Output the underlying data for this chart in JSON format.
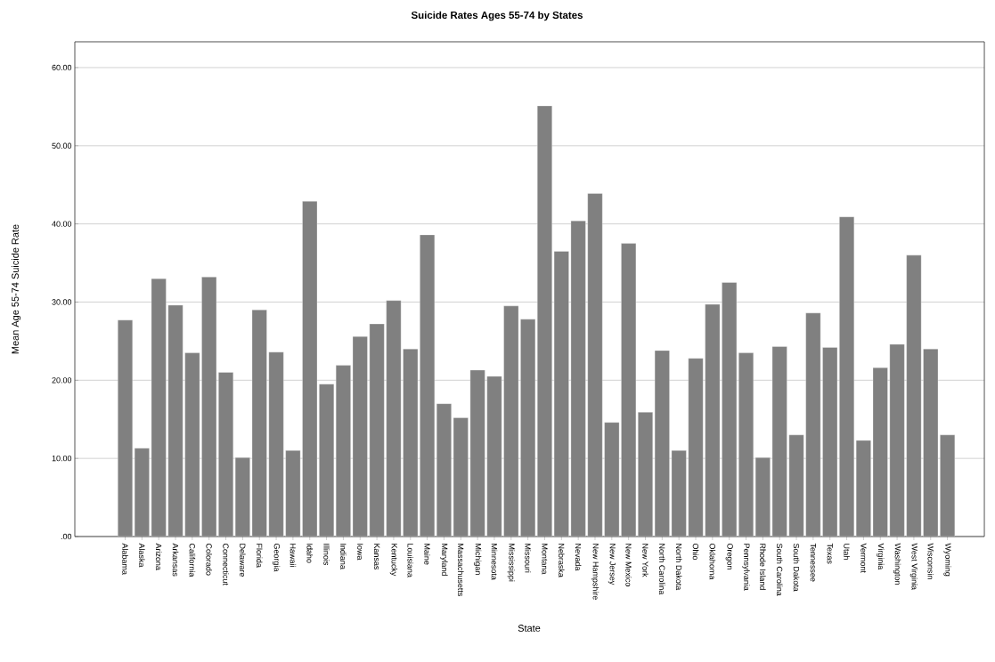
{
  "chart_data": {
    "type": "bar",
    "title": "Suicide Rates Ages 55-74 by States",
    "xlabel": "State",
    "ylabel": "Mean Age 55-74 Suicide Rate",
    "categories": [
      "Alabama",
      "Alaska",
      "Arizona",
      "Arkansas",
      "California",
      "Colorado",
      "Connecticut",
      "Delaware",
      "Florida",
      "Georgia",
      "Hawaii",
      "Idaho",
      "Illinois",
      "Indiana",
      "Iowa",
      "Kansas",
      "Kentucky",
      "Louisiana",
      "Maine",
      "Maryland",
      "Massachusetts",
      "Michigan",
      "Minnesota",
      "Mississippi",
      "Missouri",
      "Montana",
      "Nebraska",
      "Nevada",
      "New Hampshire",
      "New Jersey",
      "New Mexico",
      "New York",
      "North Carolina",
      "North Dakota",
      "Ohio",
      "Oklahoma",
      "Oregon",
      "Pennsylvania",
      "Rhode Island",
      "South Carolina",
      "South Dakota",
      "Tennessee",
      "Texas",
      "Utah",
      "Vermont",
      "Virginia",
      "Washington",
      "West Virginia",
      "Wisconsin",
      "Wyoming"
    ],
    "values": [
      27.7,
      11.3,
      33.0,
      29.6,
      23.5,
      33.2,
      21.0,
      10.1,
      29.0,
      23.6,
      11.0,
      42.9,
      19.5,
      21.9,
      25.6,
      27.2,
      30.2,
      24.0,
      38.6,
      17.0,
      15.2,
      21.3,
      20.5,
      29.5,
      27.8,
      55.1,
      36.5,
      40.4,
      43.9,
      14.6,
      37.5,
      15.9,
      23.8,
      11.0,
      22.8,
      29.7,
      32.5,
      23.5,
      10.1,
      24.3,
      13.0,
      28.6,
      24.2,
      40.9,
      12.3,
      21.6,
      24.6,
      36.0,
      24.0,
      13.0
    ],
    "color": "#808080",
    "ylim": [
      0,
      63.3
    ],
    "yticks": [
      {
        "value": 0,
        "label": ".00"
      },
      {
        "value": 10,
        "label": "10.00"
      },
      {
        "value": 20,
        "label": "20.00"
      },
      {
        "value": 30,
        "label": "30.00"
      },
      {
        "value": 40,
        "label": "40.00"
      },
      {
        "value": 50,
        "label": "50.00"
      },
      {
        "value": 60,
        "label": "60.00"
      }
    ],
    "grid": "y"
  }
}
